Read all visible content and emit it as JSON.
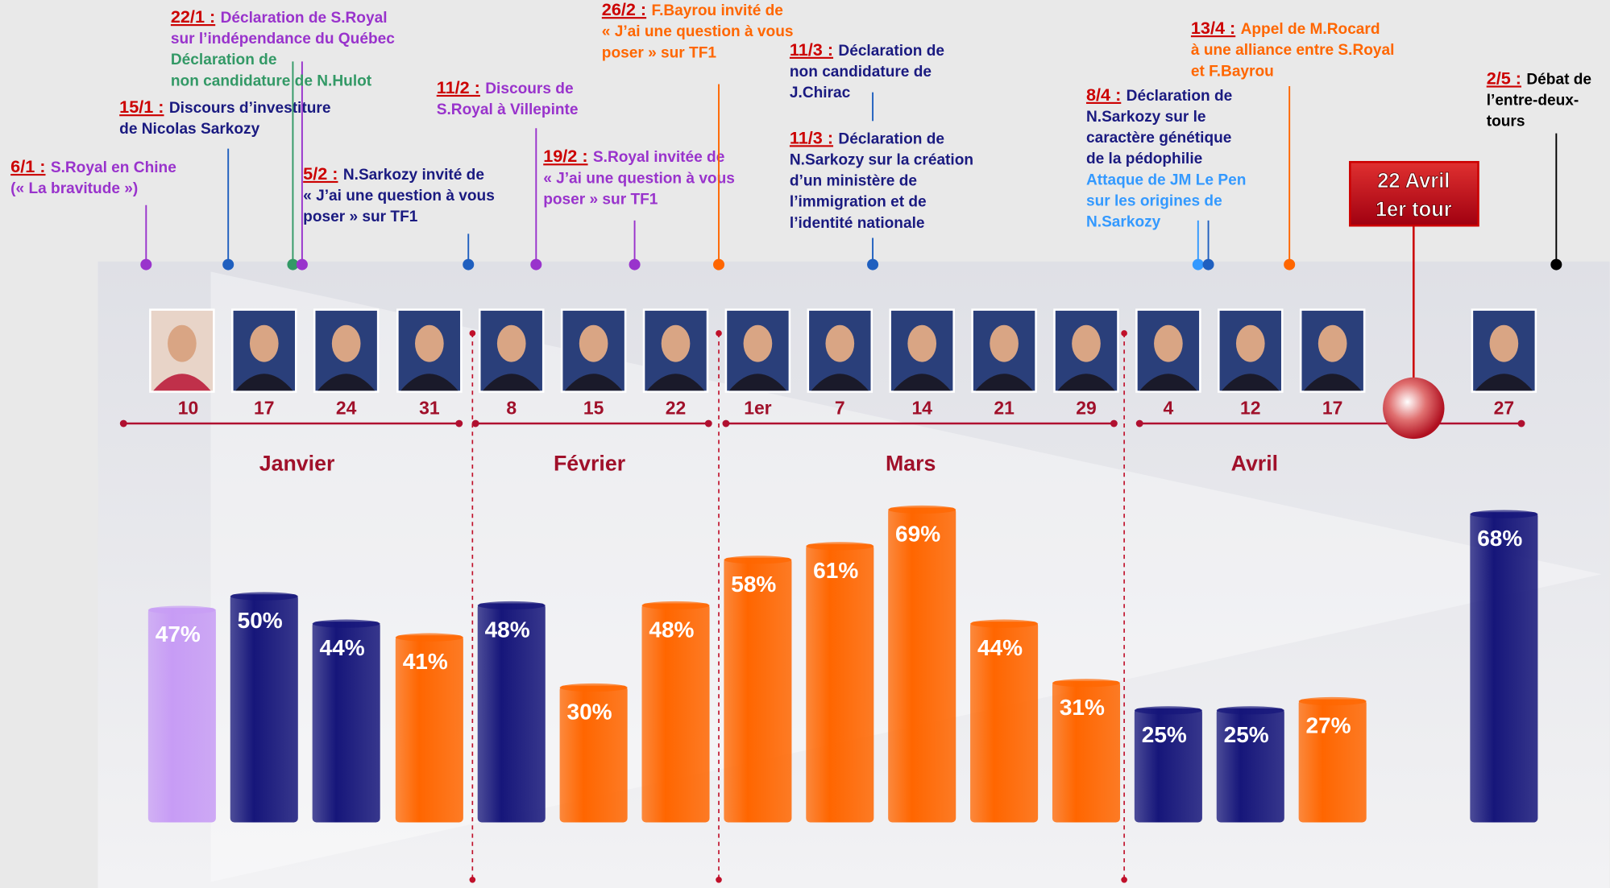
{
  "chart_data": {
    "type": "bar",
    "categories": [
      "10",
      "17",
      "24",
      "31",
      "8",
      "15",
      "22",
      "1er",
      "7",
      "14",
      "21",
      "29",
      "4",
      "12",
      "17",
      "27"
    ],
    "values": [
      47,
      50,
      44,
      41,
      48,
      30,
      48,
      58,
      61,
      69,
      44,
      31,
      25,
      25,
      27,
      68
    ],
    "value_labels": [
      "47%",
      "50%",
      "44%",
      "41%",
      "48%",
      "30%",
      "48%",
      "58%",
      "61%",
      "69%",
      "44%",
      "31%",
      "25%",
      "25%",
      "27%",
      "68%"
    ],
    "colors": [
      "#c79cf5",
      "#16167a",
      "#16167a",
      "#ff6600",
      "#16167a",
      "#ff6600",
      "#ff6600",
      "#ff6600",
      "#ff6600",
      "#ff6600",
      "#ff6600",
      "#ff6600",
      "#16167a",
      "#16167a",
      "#ff6600",
      "#16167a"
    ],
    "months": [
      "Janvier",
      "Février",
      "Mars",
      "Avril"
    ],
    "highlight": {
      "lines": [
        "22 Avril",
        "1er tour"
      ],
      "color": "#cc0000"
    },
    "date_color": "#cc0000",
    "events": [
      {
        "date": "6/1 :",
        "lines": [
          {
            "text": "S.Royal en Chine",
            "color": "#9933cc"
          },
          {
            "text": "(« La bravitude »)",
            "color": "#9933cc"
          }
        ],
        "marker_colors": [
          "#9933cc"
        ]
      },
      {
        "date": "15/1 :",
        "lines": [
          {
            "text": "Discours d’investiture",
            "color": "#1a1a80"
          },
          {
            "text": "de Nicolas Sarkozy",
            "color": "#1a1a80"
          }
        ],
        "marker_colors": [
          "#1f5fbf"
        ]
      },
      {
        "date": "22/1 :",
        "lines": [
          {
            "text": "Déclaration de S.Royal",
            "color": "#9933cc"
          },
          {
            "text": "sur l’indépendance du Québec",
            "color": "#9933cc"
          },
          {
            "text": "Déclaration de",
            "color": "#339966"
          },
          {
            "text": "non candidature de N.Hulot",
            "color": "#339966"
          }
        ],
        "marker_colors": [
          "#339966",
          "#9933cc"
        ]
      },
      {
        "date": "5/2 :",
        "lines": [
          {
            "text": "N.Sarkozy invité de",
            "color": "#1a1a80"
          },
          {
            "text": "« J’ai une question à vous",
            "color": "#1a1a80"
          },
          {
            "text": "poser » sur TF1",
            "color": "#1a1a80"
          }
        ],
        "marker_colors": [
          "#1f5fbf"
        ]
      },
      {
        "date": "11/2 :",
        "lines": [
          {
            "text": "Discours de",
            "color": "#9933cc"
          },
          {
            "text": "S.Royal à Villepinte",
            "color": "#9933cc"
          }
        ],
        "marker_colors": [
          "#9933cc"
        ]
      },
      {
        "date": "19/2 :",
        "lines": [
          {
            "text": "S.Royal invitée de",
            "color": "#9933cc"
          },
          {
            "text": "« J’ai une question à vous",
            "color": "#9933cc"
          },
          {
            "text": "poser » sur TF1",
            "color": "#9933cc"
          }
        ],
        "marker_colors": [
          "#9933cc"
        ]
      },
      {
        "date": "26/2 :",
        "lines": [
          {
            "text": "F.Bayrou invité de",
            "color": "#ff6600"
          },
          {
            "text": "« J’ai une question à vous",
            "color": "#ff6600"
          },
          {
            "text": "poser » sur TF1",
            "color": "#ff6600"
          }
        ],
        "marker_colors": [
          "#ff6600"
        ]
      },
      {
        "date": "11/3 :",
        "lines": [
          {
            "text": "Déclaration de",
            "color": "#1a1a80"
          },
          {
            "text": "non candidature de",
            "color": "#1a1a80"
          },
          {
            "text": "J.Chirac",
            "color": "#1a1a80"
          }
        ],
        "marker_colors": []
      },
      {
        "date": "11/3 :",
        "lines": [
          {
            "text": "Déclaration de",
            "color": "#1a1a80"
          },
          {
            "text": "N.Sarkozy sur la création",
            "color": "#1a1a80"
          },
          {
            "text": "d’un ministère de",
            "color": "#1a1a80"
          },
          {
            "text": "l’immigration et de",
            "color": "#1a1a80"
          },
          {
            "text": "l’identité nationale",
            "color": "#1a1a80"
          }
        ],
        "marker_colors": [
          "#1f5fbf"
        ]
      },
      {
        "date": "8/4 :",
        "lines": [
          {
            "text": "Déclaration de",
            "color": "#1a1a80"
          },
          {
            "text": "N.Sarkozy sur le",
            "color": "#1a1a80"
          },
          {
            "text": "caractère génétique",
            "color": "#1a1a80"
          },
          {
            "text": "de la pédophilie",
            "color": "#1a1a80"
          },
          {
            "text": "Attaque de JM Le Pen",
            "color": "#3399ff"
          },
          {
            "text": "sur les origines de",
            "color": "#3399ff"
          },
          {
            "text": "N.Sarkozy",
            "color": "#3399ff"
          }
        ],
        "marker_colors": [
          "#3399ff",
          "#1f5fbf"
        ]
      },
      {
        "date": "13/4 :",
        "lines": [
          {
            "text": "Appel de M.Rocard",
            "color": "#ff6600"
          },
          {
            "text": "à une alliance entre S.Royal",
            "color": "#ff6600"
          },
          {
            "text": "et F.Bayrou",
            "color": "#ff6600"
          }
        ],
        "marker_colors": [
          "#ff6600"
        ]
      },
      {
        "date": "2/5 :",
        "lines": [
          {
            "text": "Débat de",
            "color": "#000000"
          },
          {
            "text": "l’entre-deux-",
            "color": "#000000"
          },
          {
            "text": "tours",
            "color": "#000000"
          }
        ],
        "marker_colors": [
          "#000000"
        ]
      }
    ]
  }
}
